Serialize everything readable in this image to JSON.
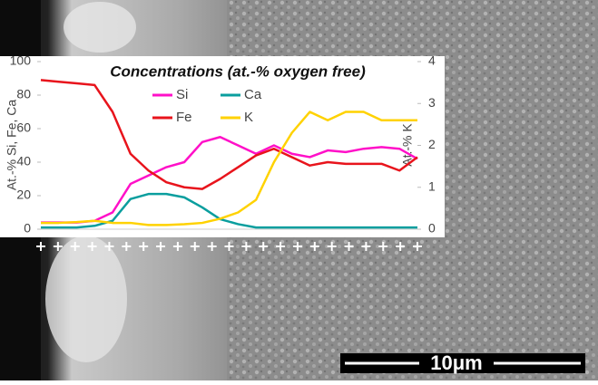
{
  "chart_data": {
    "type": "line",
    "title": "Concentrations (at.-% oxygen free)",
    "y_label": "At.-% Si, Fe, Ca",
    "y2_label": "At.-% K",
    "categories": [
      null,
      null,
      null,
      null,
      null,
      null,
      null,
      null,
      null,
      null,
      null,
      null,
      null,
      null,
      null,
      null,
      null,
      null,
      null,
      null,
      null,
      null
    ],
    "series": [
      {
        "name": "Si",
        "color": "#ff10c8",
        "values": [
          4,
          4,
          4,
          5,
          10,
          27,
          32,
          37,
          40,
          52,
          55,
          50,
          45,
          50,
          45,
          43,
          47,
          46,
          48,
          49,
          48,
          42
        ]
      },
      {
        "name": "Ca",
        "color": "#0a9e9e",
        "values": [
          1,
          1,
          1,
          2,
          5,
          18,
          21,
          21,
          19,
          13,
          6,
          3,
          1,
          1,
          1,
          1,
          1,
          1,
          1,
          1,
          1,
          1
        ]
      },
      {
        "name": "Fe",
        "color": "#e8141c",
        "values": [
          89,
          88,
          87,
          86,
          70,
          45,
          35,
          28,
          25,
          24,
          30,
          37,
          44,
          48,
          43,
          38,
          40,
          39,
          39,
          39,
          35,
          43
        ]
      },
      {
        "name": "K",
        "color": "#ffd200",
        "axis": "y2",
        "values": [
          0.15,
          0.15,
          0.17,
          0.2,
          0.15,
          0.15,
          0.1,
          0.1,
          0.12,
          0.15,
          0.25,
          0.4,
          0.7,
          1.6,
          2.3,
          2.8,
          2.6,
          2.8,
          2.8,
          2.6,
          2.6,
          2.6
        ]
      }
    ],
    "ylim": [
      0,
      100
    ],
    "yticks": [
      0,
      20,
      40,
      60,
      80,
      100
    ],
    "y2lim": [
      0,
      4
    ],
    "y2ticks": [
      0,
      1,
      2,
      3,
      4
    ],
    "grid": false,
    "legend": "top-center"
  },
  "scale_bar": "10μm"
}
